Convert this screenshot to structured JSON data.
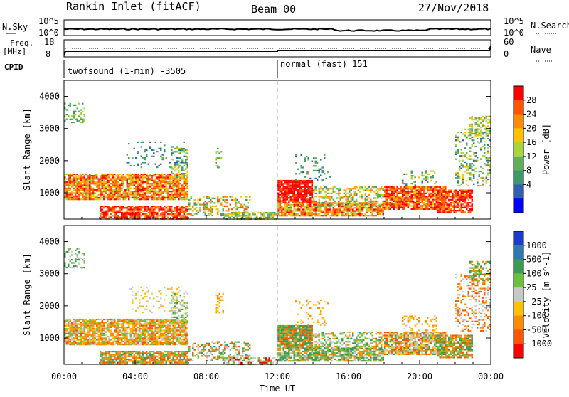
{
  "header": {
    "title": "Rankin Inlet (fitACF)",
    "beam": "Beam 00",
    "date": "27/Nov/2018"
  },
  "noise_panel": {
    "left_label": "N.Sky",
    "right_label": "N.Search",
    "y_ticks_left": [
      "10^5",
      "10^0"
    ],
    "y_ticks_right": [
      "10^5",
      "10^0"
    ]
  },
  "freq_panel": {
    "left_label": "Freq.",
    "left_unit": "[MHz]",
    "right_label": "Nave",
    "y_ticks_left": [
      "18",
      "8"
    ],
    "y_ticks_right": [
      "60",
      "0"
    ]
  },
  "cpid": {
    "label": "CPID",
    "mode1": "twofsound (1-min) -3505",
    "mode2": "normal (fast) 151",
    "switch_hour": 12
  },
  "chart_data": [
    {
      "type": "heatmap",
      "name": "power",
      "ylabel": "Slant Range [km]",
      "ylim": [
        180,
        4500
      ],
      "yticks": [
        1000,
        2000,
        3000,
        4000
      ],
      "xlim": [
        0,
        24
      ],
      "colorbar": {
        "label": "Power [dB]",
        "ticks": [
          "28",
          "24",
          "20",
          "16",
          "12",
          "8",
          "4"
        ],
        "colors": [
          "#ff0000",
          "#ff5500",
          "#ff8c00",
          "#ffc000",
          "#aad43c",
          "#5fb05a",
          "#3c9a6a",
          "#2e5fb5",
          "#0000ff"
        ]
      }
    },
    {
      "type": "heatmap",
      "name": "velocity",
      "ylabel": "Slant Range [km]",
      "ylim": [
        180,
        4500
      ],
      "yticks": [
        1000,
        2000,
        3000,
        4000
      ],
      "xlim": [
        0,
        24
      ],
      "colorbar": {
        "label": "Velocity [m s^-1]",
        "ticks": [
          "1000",
          "500",
          "100",
          "25",
          "-25",
          "-100",
          "-500",
          "-1000"
        ],
        "colors": [
          "#1e3ccc",
          "#2e7ab0",
          "#3d9a55",
          "#6cc13c",
          "#c8c8c8",
          "#ffc000",
          "#ff8c00",
          "#ff5500",
          "#ff0000"
        ]
      }
    }
  ],
  "x_axis": {
    "ticks": [
      "00:00",
      "04:00",
      "08:00",
      "12:00",
      "16:00",
      "20:00",
      "00:00"
    ],
    "label": "Time UT"
  }
}
